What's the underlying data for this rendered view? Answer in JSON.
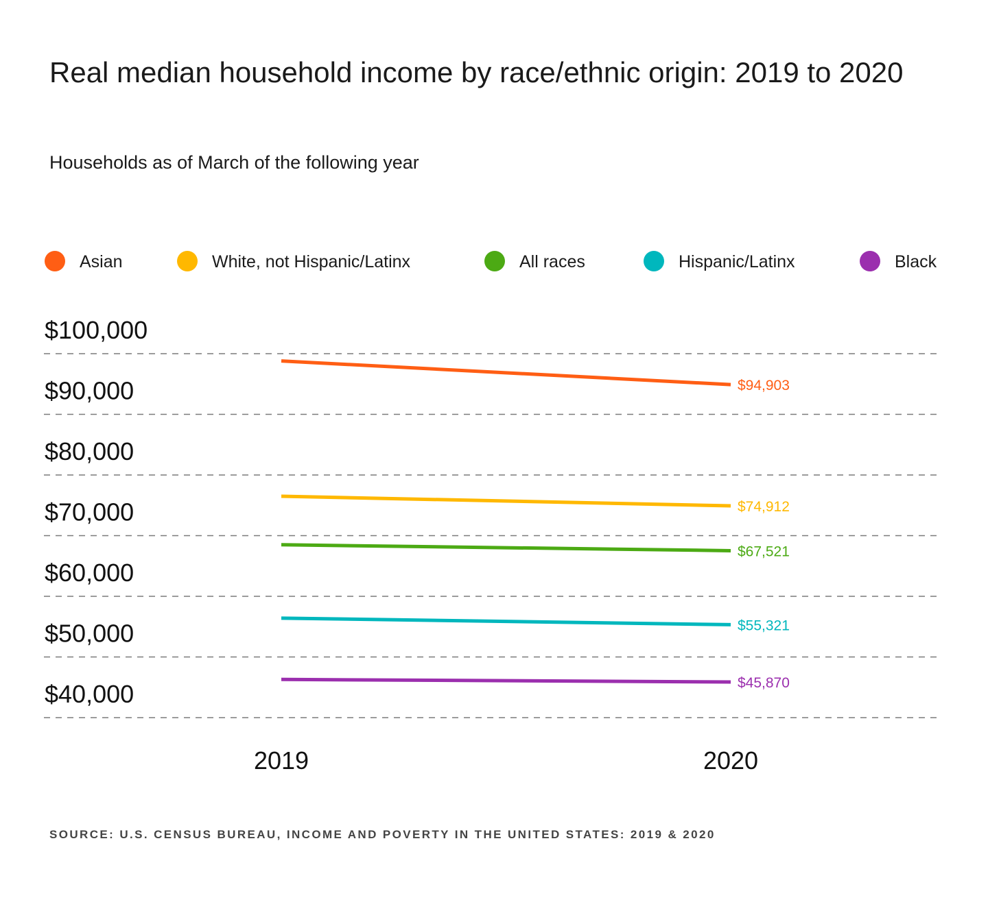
{
  "title": "Real median household income by race/ethnic origin: 2019 to 2020",
  "subtitle": "Households as of March of the following year",
  "source": "SOURCE: U.S. CENSUS BUREAU, INCOME AND POVERTY IN THE UNITED STATES: 2019 & 2020",
  "chart_data": {
    "type": "line",
    "title": "Real median household income by race/ethnic origin: 2019 to 2020",
    "subtitle": "Households as of March of the following year",
    "x": [
      "2019",
      "2020"
    ],
    "y_ticks": [
      "$100,000",
      "$90,000",
      "$80,000",
      "$70,000",
      "$60,000",
      "$50,000",
      "$40,000"
    ],
    "y_tick_values": [
      100000,
      90000,
      80000,
      70000,
      60000,
      50000,
      40000
    ],
    "ylim": [
      40000,
      100000
    ],
    "grid": true,
    "legend": "top",
    "series": [
      {
        "name": "Asian",
        "color": "#ff5e14",
        "values": [
          98800,
          94903
        ],
        "end_label": "$94,903"
      },
      {
        "name": "White, not Hispanic/Latinx",
        "color": "#ffb800",
        "values": [
          76500,
          74912
        ],
        "end_label": "$74,912"
      },
      {
        "name": "All races",
        "color": "#4caa14",
        "values": [
          68500,
          67521
        ],
        "end_label": "$67,521"
      },
      {
        "name": "Hispanic/Latinx",
        "color": "#00b7bd",
        "values": [
          56400,
          55321
        ],
        "end_label": "$55,321"
      },
      {
        "name": "Black",
        "color": "#9b2fae",
        "values": [
          46300,
          45870
        ],
        "end_label": "$45,870"
      }
    ]
  }
}
